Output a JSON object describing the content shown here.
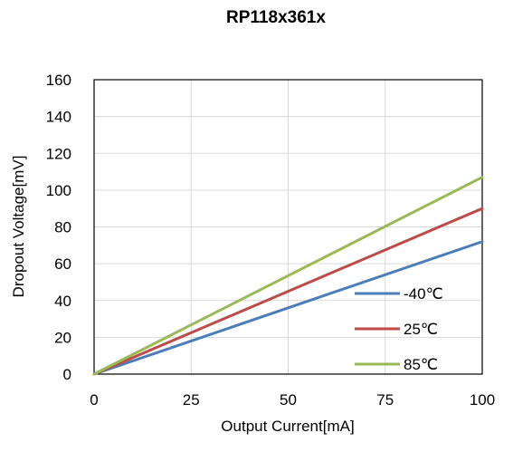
{
  "chart_data": {
    "type": "line",
    "title": "RP118x361x",
    "xlabel": "Output Current[mA]",
    "ylabel": "Dropout Voltage[mV]",
    "xlim": [
      0,
      100
    ],
    "ylim": [
      0,
      160
    ],
    "x_ticks": [
      0,
      25,
      50,
      75,
      100
    ],
    "y_ticks": [
      0,
      20,
      40,
      60,
      80,
      100,
      120,
      140,
      160
    ],
    "grid": true,
    "legend_position": "bottom-right",
    "series": [
      {
        "name": "-40℃",
        "color": "#4a7ebb",
        "x": [
          0,
          100
        ],
        "y": [
          0,
          72
        ]
      },
      {
        "name": "25℃",
        "color": "#be4b48",
        "x": [
          0,
          100
        ],
        "y": [
          0,
          90
        ]
      },
      {
        "name": "85℃",
        "color": "#98b954",
        "x": [
          0,
          100
        ],
        "y": [
          0,
          107
        ]
      }
    ]
  }
}
